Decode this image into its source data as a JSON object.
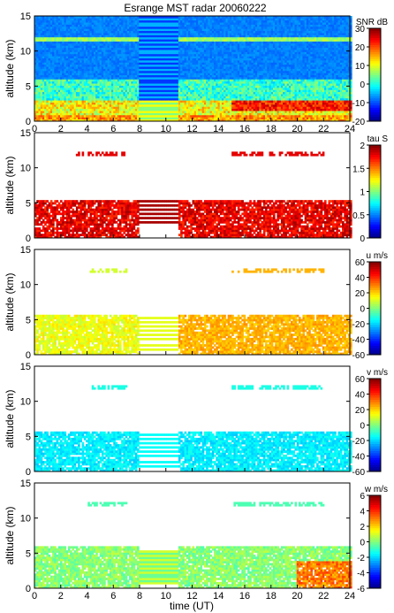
{
  "title": "Esrange MST radar 20060222",
  "xlabel": "time (UT)",
  "chart_data": [
    {
      "type": "heatmap",
      "title": "Esrange MST radar 20060222",
      "ylabel": "altitude (km)",
      "xlabel": "",
      "xlim": [
        0,
        24
      ],
      "ylim": [
        0,
        15
      ],
      "x_ticks": [
        "0",
        "2",
        "4",
        "6",
        "8",
        "10",
        "12",
        "14",
        "16",
        "18",
        "20",
        "22",
        "24"
      ],
      "y_ticks": [
        "0",
        "5",
        "10",
        "15"
      ],
      "colorbar": {
        "label": "SNR dB",
        "range": [
          -20,
          30
        ],
        "ticks": [
          "-20",
          "-10",
          "0",
          "10",
          "20",
          "30"
        ]
      },
      "colormap": "jet"
    },
    {
      "type": "heatmap",
      "ylabel": "altitude (km)",
      "xlim": [
        0,
        24
      ],
      "ylim": [
        0,
        15
      ],
      "y_ticks": [
        "0",
        "5",
        "10",
        "15"
      ],
      "colorbar": {
        "label": "tau S",
        "range": [
          0,
          2
        ],
        "ticks": [
          "0",
          "0.5",
          "1",
          "1.5",
          "2"
        ]
      },
      "colormap": "jet"
    },
    {
      "type": "heatmap",
      "ylabel": "altitude (km)",
      "xlim": [
        0,
        24
      ],
      "ylim": [
        0,
        15
      ],
      "y_ticks": [
        "0",
        "5",
        "10",
        "15"
      ],
      "colorbar": {
        "label": "u m/s",
        "range": [
          -60,
          60
        ],
        "ticks": [
          "-60",
          "-40",
          "-20",
          "0",
          "20",
          "40",
          "60"
        ]
      },
      "colormap": "jet"
    },
    {
      "type": "heatmap",
      "ylabel": "altitude (km)",
      "xlim": [
        0,
        24
      ],
      "ylim": [
        0,
        15
      ],
      "y_ticks": [
        "0",
        "5",
        "10",
        "15"
      ],
      "colorbar": {
        "label": "v m/s",
        "range": [
          -60,
          60
        ],
        "ticks": [
          "-60",
          "-40",
          "-20",
          "0",
          "20",
          "40",
          "60"
        ]
      },
      "colormap": "jet"
    },
    {
      "type": "heatmap",
      "ylabel": "altitude (km)",
      "xlabel": "time (UT)",
      "xlim": [
        0,
        24
      ],
      "ylim": [
        0,
        15
      ],
      "x_ticks": [
        "0",
        "2",
        "4",
        "6",
        "8",
        "10",
        "12",
        "14",
        "16",
        "18",
        "20",
        "22",
        "24"
      ],
      "y_ticks": [
        "0",
        "5",
        "10",
        "15"
      ],
      "colorbar": {
        "label": "w m/s",
        "range": [
          -6,
          6
        ],
        "ticks": [
          "-6",
          "-4",
          "-2",
          "0",
          "2",
          "4",
          "6"
        ]
      },
      "colormap": "jet"
    }
  ]
}
